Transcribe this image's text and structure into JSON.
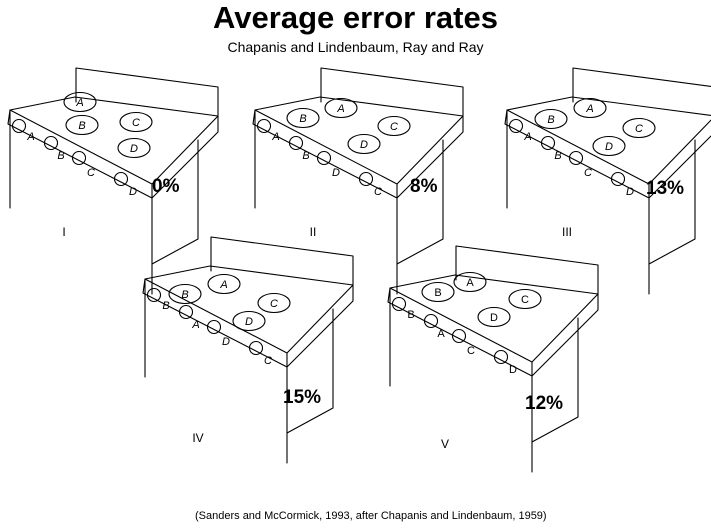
{
  "title": "Average error rates",
  "subtitle": "Chapanis and Lindenbaum, Ray and Ray",
  "citation": "(Sanders and McCormick, 1993, after Chapanis and Lindenbaum, 1959)",
  "stoves": [
    {
      "roman": "I",
      "error_rate": "0%",
      "burners": [
        "A",
        "B",
        "C",
        "D"
      ],
      "control_labels": [
        "A",
        "B",
        "C",
        "D"
      ]
    },
    {
      "roman": "II",
      "error_rate": "8%",
      "burners": [
        "A",
        "B",
        "C",
        "D"
      ],
      "control_labels": [
        "A",
        "B",
        "D",
        "C"
      ]
    },
    {
      "roman": "III",
      "error_rate": "13%",
      "burners": [
        "A",
        "B",
        "C",
        "D"
      ],
      "control_labels": [
        "A",
        "B",
        "C",
        "D"
      ]
    },
    {
      "roman": "IV",
      "error_rate": "15%",
      "burners": [
        "A",
        "B",
        "C",
        "D"
      ],
      "control_labels": [
        "B",
        "A",
        "D",
        "C"
      ]
    },
    {
      "roman": "V",
      "error_rate": "12%",
      "burners": [
        "A",
        "B",
        "C",
        "D"
      ],
      "control_labels": [
        "B",
        "A",
        "C",
        "D"
      ]
    }
  ]
}
